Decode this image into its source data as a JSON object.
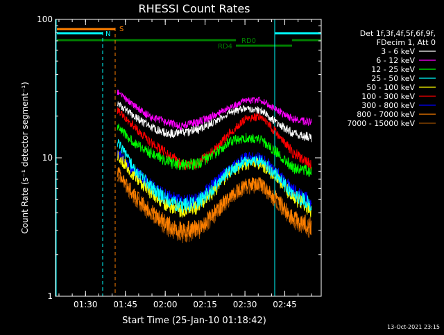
{
  "chart_data": {
    "type": "line",
    "title": "RHESSI Count Rates",
    "xlabel": "Start Time (25-Jan-10 01:18:42)",
    "ylabel": "Count Rate (s⁻¹ detector segment⁻¹)",
    "yscale": "log",
    "ylim": [
      1,
      100
    ],
    "y_ticks": [
      {
        "value": 1,
        "label": "1"
      },
      {
        "value": 10,
        "label": "10"
      },
      {
        "value": 100,
        "label": "100"
      }
    ],
    "xlim": [
      "01:18:42",
      "02:58:42"
    ],
    "x_ticks": [
      {
        "time": "01:30",
        "label": "01:30"
      },
      {
        "time": "01:45",
        "label": "01:45"
      },
      {
        "time": "02:00",
        "label": "02:00"
      },
      {
        "time": "02:15",
        "label": "02:15"
      },
      {
        "time": "02:30",
        "label": "02:30"
      },
      {
        "time": "02:45",
        "label": "02:45"
      }
    ],
    "legend_header": [
      "Det 1f,3f,4f,5f,6f,9f,",
      "FDecim 1, Att 0"
    ],
    "x": [
      "01:42",
      "01:48",
      "01:54",
      "02:00",
      "02:06",
      "02:12",
      "02:18",
      "02:24",
      "02:30",
      "02:36",
      "02:42",
      "02:48",
      "02:55"
    ],
    "series": [
      {
        "name": "3 - 6 keV",
        "color": "#ffffff",
        "values": [
          25,
          20,
          17,
          15,
          15,
          16,
          18,
          21,
          23,
          22,
          18,
          15,
          14
        ]
      },
      {
        "name": "6 - 12 keV",
        "color": "#ff00ff",
        "values": [
          30,
          24,
          20,
          18,
          17,
          18,
          20,
          23,
          26,
          26,
          22,
          19,
          18
        ]
      },
      {
        "name": "12 - 25 keV",
        "color": "#00ff00",
        "values": [
          17,
          13,
          11,
          9.5,
          8.8,
          9,
          10.5,
          13,
          14,
          13.5,
          11,
          8.5,
          8
        ]
      },
      {
        "name": "25 - 50 keV",
        "color": "#00ffff",
        "values": [
          13,
          8.5,
          6.3,
          5,
          4.5,
          4.7,
          6,
          8,
          9.5,
          9.5,
          7.5,
          5.5,
          4.5
        ]
      },
      {
        "name": "50 - 100 keV",
        "color": "#ffff00",
        "values": [
          10.5,
          7.5,
          5.8,
          4.7,
          4.2,
          4.4,
          5.6,
          7.8,
          9,
          9,
          7.2,
          5.2,
          4.2
        ]
      },
      {
        "name": "100 - 300 keV",
        "color": "#ff0000",
        "values": [
          22,
          17,
          13,
          11,
          9,
          9,
          11,
          15,
          19,
          20,
          15,
          11,
          9
        ]
      },
      {
        "name": "300 - 800 keV",
        "color": "#0000ff",
        "values": [
          11,
          8,
          6.5,
          5.3,
          4.8,
          5,
          6.3,
          8.3,
          10,
          10,
          7.8,
          5.8,
          4.8
        ]
      },
      {
        "name": "800 - 7000 keV",
        "color": "#ff8000",
        "values": [
          8,
          5.5,
          4.2,
          3.4,
          3,
          3.1,
          3.9,
          5.2,
          6.4,
          6.5,
          5,
          3.7,
          3.2
        ]
      },
      {
        "name": "7000 - 15000 keV",
        "color": "#a05000",
        "values": [
          7.5,
          5.2,
          4,
          3.2,
          2.8,
          2.9,
          3.7,
          5,
          6.1,
          6.2,
          4.8,
          3.5,
          3
        ]
      }
    ],
    "annotations": [
      {
        "text": "S",
        "color": "#ff8000"
      },
      {
        "text": "N",
        "color": "#00ffff"
      },
      {
        "text": "RD0",
        "color": "#008000"
      },
      {
        "text": "RD4",
        "color": "#008000"
      }
    ],
    "timestamp": "13-Oct-2021 23:15"
  }
}
